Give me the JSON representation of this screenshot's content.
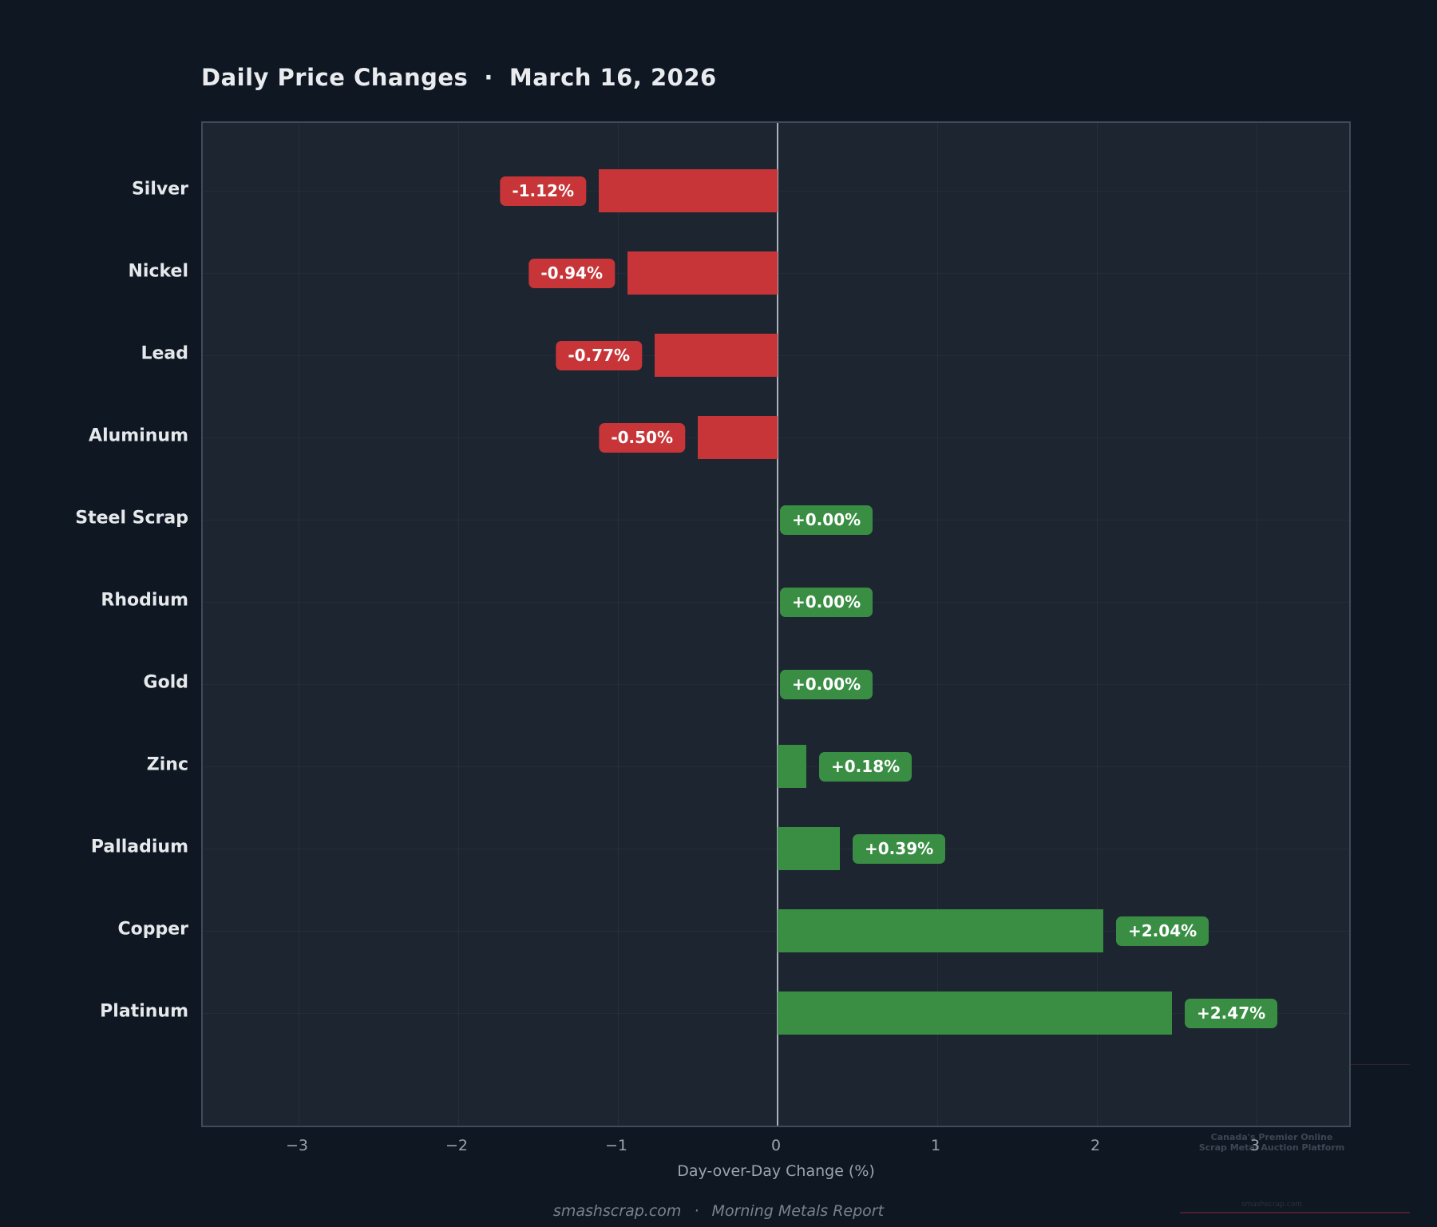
{
  "title": {
    "text": "Daily Price Changes",
    "separator": "·",
    "date": "March 16, 2026"
  },
  "chart_data": {
    "type": "bar",
    "orientation": "horizontal",
    "title": "Daily Price Changes · March 16, 2026",
    "categories": [
      "Silver",
      "Nickel",
      "Lead",
      "Aluminum",
      "Steel Scrap",
      "Rhodium",
      "Gold",
      "Zinc",
      "Palladium",
      "Copper",
      "Platinum"
    ],
    "values": [
      -1.12,
      -0.94,
      -0.77,
      -0.5,
      0.0,
      0.0,
      0.0,
      0.18,
      0.39,
      2.04,
      2.47
    ],
    "bar_labels": [
      "-1.12%",
      "-0.94%",
      "-0.77%",
      "-0.50%",
      "+0.00%",
      "+0.00%",
      "+0.00%",
      "+0.18%",
      "+0.39%",
      "+2.04%",
      "+2.47%"
    ],
    "xlabel": "Day-over-Day Change (%)",
    "ylabel": "",
    "xlim": [
      -3.6,
      3.6
    ],
    "xticks": [
      -3,
      -2,
      -1,
      0,
      1,
      2,
      3
    ],
    "xtick_labels": [
      "−3",
      "−2",
      "−1",
      "0",
      "1",
      "2",
      "3"
    ],
    "grid": true,
    "zero_line": true,
    "legend": false,
    "colors": {
      "positive": "#3a8e44",
      "negative": "#c73538",
      "background": "#0f1722",
      "plot_background": "#1c2530",
      "zero_line": "#a9b2bc"
    }
  },
  "footer": {
    "site": "smashscrap.com",
    "separator": "·",
    "report": "Morning Metals Report"
  },
  "watermark": {
    "line1": "Canada's Premier Online",
    "line2": "Scrap Metal Auction Platform",
    "site": "smashscrap.com"
  }
}
